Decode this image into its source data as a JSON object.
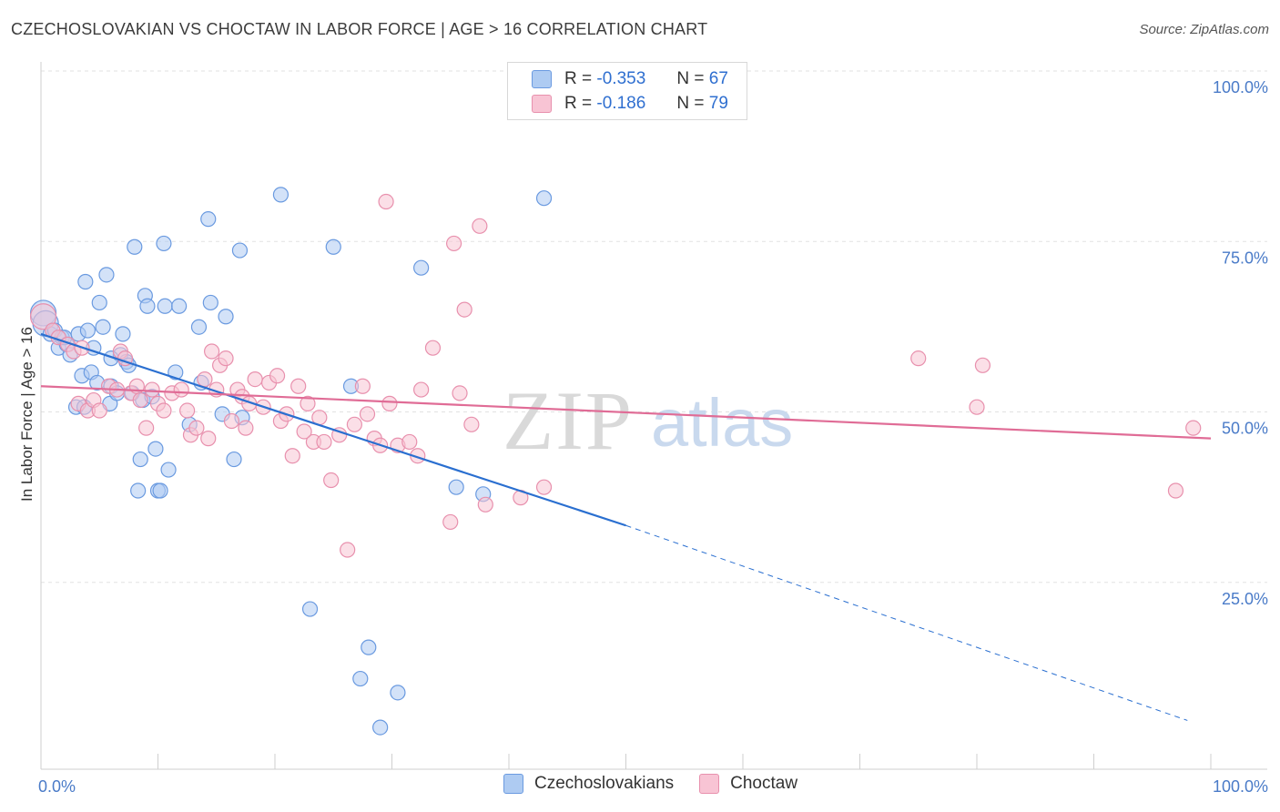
{
  "title": "CZECHOSLOVAKIAN VS CHOCTAW IN LABOR FORCE | AGE > 16 CORRELATION CHART",
  "source": "Source: ZipAtlas.com",
  "watermark": {
    "part1": "ZIP",
    "part2": "atlas"
  },
  "legend_top": [
    {
      "r_label": "R =",
      "r_value": "-0.353",
      "n_label": "N =",
      "n_value": "67",
      "color": "#aecbf2",
      "stroke": "#6a9ae0"
    },
    {
      "r_label": "R =",
      "r_value": "-0.186",
      "n_label": "N =",
      "n_value": "79",
      "color": "#f8c4d4",
      "stroke": "#e890ad"
    }
  ],
  "legend_bottom": [
    {
      "label": "Czechoslovakians",
      "color": "#aecbf2",
      "stroke": "#6a9ae0"
    },
    {
      "label": "Choctaw",
      "color": "#f8c4d4",
      "stroke": "#e890ad"
    }
  ],
  "chart_data": {
    "type": "scatter",
    "title": "CZECHOSLOVAKIAN VS CHOCTAW IN LABOR FORCE | AGE > 16 CORRELATION CHART",
    "xlabel": "",
    "ylabel": "In Labor Force | Age > 16",
    "xlim": [
      0,
      100
    ],
    "ylim": [
      0,
      100
    ],
    "x_tick_labels": [
      "0.0%",
      "100.0%"
    ],
    "y_tick_labels": [
      "25.0%",
      "50.0%",
      "75.0%",
      "100.0%"
    ],
    "y_ticks": [
      25,
      50,
      75,
      100
    ],
    "grid": true,
    "series": [
      {
        "name": "Czechoslovakians",
        "color": "#6a9ae0",
        "fill": "#aecbf2",
        "trend": {
          "x0": 0,
          "y0": 62.5,
          "x1": 50,
          "y1": 35.0,
          "dash_to_x": 98,
          "dash_to_y": 7.0,
          "color": "#2a6fd0"
        },
        "points": [
          [
            0.2,
            65.5
          ],
          [
            0.4,
            64.0
          ],
          [
            0.8,
            62.5
          ],
          [
            1.2,
            63.0
          ],
          [
            1.5,
            60.5
          ],
          [
            1.8,
            62.0
          ],
          [
            2.2,
            61.0
          ],
          [
            2.5,
            59.5
          ],
          [
            3.0,
            52.0
          ],
          [
            3.2,
            62.5
          ],
          [
            3.5,
            56.5
          ],
          [
            3.8,
            70.0
          ],
          [
            4.0,
            63.0
          ],
          [
            4.3,
            57.0
          ],
          [
            4.5,
            60.5
          ],
          [
            4.8,
            55.5
          ],
          [
            5.0,
            67.0
          ],
          [
            5.3,
            63.5
          ],
          [
            5.6,
            71.0
          ],
          [
            5.9,
            52.5
          ],
          [
            6.0,
            55.0
          ],
          [
            6.5,
            54.0
          ],
          [
            6.8,
            59.5
          ],
          [
            7.0,
            62.5
          ],
          [
            7.3,
            58.5
          ],
          [
            7.5,
            58.0
          ],
          [
            7.8,
            54.0
          ],
          [
            8.0,
            75.0
          ],
          [
            8.3,
            40.0
          ],
          [
            8.5,
            44.5
          ],
          [
            8.7,
            53.0
          ],
          [
            8.9,
            68.0
          ],
          [
            9.1,
            66.5
          ],
          [
            9.5,
            53.5
          ],
          [
            9.8,
            46.0
          ],
          [
            10.0,
            40.0
          ],
          [
            10.2,
            40.0
          ],
          [
            10.5,
            75.5
          ],
          [
            10.6,
            66.5
          ],
          [
            10.9,
            43.0
          ],
          [
            11.5,
            57.0
          ],
          [
            11.8,
            66.5
          ],
          [
            12.7,
            49.5
          ],
          [
            13.5,
            63.5
          ],
          [
            13.7,
            55.5
          ],
          [
            14.3,
            79.0
          ],
          [
            14.5,
            67.0
          ],
          [
            15.5,
            51.0
          ],
          [
            15.8,
            65.0
          ],
          [
            16.5,
            44.5
          ],
          [
            17.0,
            74.5
          ],
          [
            17.2,
            50.5
          ],
          [
            20.5,
            82.5
          ],
          [
            23.0,
            23.0
          ],
          [
            25.0,
            75.0
          ],
          [
            26.5,
            55.0
          ],
          [
            28.0,
            17.5
          ],
          [
            27.3,
            13.0
          ],
          [
            29.0,
            6.0
          ],
          [
            30.5,
            11.0
          ],
          [
            32.5,
            72.0
          ],
          [
            35.5,
            40.5
          ],
          [
            37.8,
            39.5
          ],
          [
            43.0,
            82.0
          ],
          [
            6.0,
            59.0
          ],
          [
            3.7,
            52.0
          ],
          [
            2.0,
            62.0
          ]
        ]
      },
      {
        "name": "Choctaw",
        "color": "#e890ad",
        "fill": "#f8c4d4",
        "trend": {
          "x0": 0,
          "y0": 55.0,
          "x1": 100,
          "y1": 47.5,
          "color": "#e06c96"
        },
        "points": [
          [
            0.2,
            65.0
          ],
          [
            1.0,
            63.0
          ],
          [
            1.5,
            62.0
          ],
          [
            2.3,
            61.0
          ],
          [
            2.8,
            60.0
          ],
          [
            3.2,
            52.5
          ],
          [
            4.0,
            51.5
          ],
          [
            4.5,
            53.0
          ],
          [
            5.0,
            51.5
          ],
          [
            5.8,
            55.0
          ],
          [
            6.5,
            54.5
          ],
          [
            6.8,
            60.0
          ],
          [
            7.2,
            59.0
          ],
          [
            7.7,
            54.0
          ],
          [
            8.2,
            55.0
          ],
          [
            8.5,
            53.0
          ],
          [
            9.0,
            49.0
          ],
          [
            9.5,
            54.5
          ],
          [
            10.0,
            52.5
          ],
          [
            10.5,
            51.5
          ],
          [
            11.2,
            54.0
          ],
          [
            12.0,
            54.5
          ],
          [
            12.5,
            51.5
          ],
          [
            12.8,
            48.0
          ],
          [
            13.3,
            49.0
          ],
          [
            14.0,
            56.0
          ],
          [
            14.3,
            47.5
          ],
          [
            14.6,
            60.0
          ],
          [
            15.0,
            54.5
          ],
          [
            15.3,
            58.0
          ],
          [
            15.8,
            59.0
          ],
          [
            16.3,
            50.0
          ],
          [
            16.8,
            54.5
          ],
          [
            17.2,
            53.5
          ],
          [
            17.5,
            49.0
          ],
          [
            17.8,
            52.5
          ],
          [
            18.3,
            56.0
          ],
          [
            19.0,
            52.0
          ],
          [
            19.5,
            55.5
          ],
          [
            20.2,
            56.5
          ],
          [
            20.5,
            50.0
          ],
          [
            21.0,
            51.0
          ],
          [
            21.5,
            45.0
          ],
          [
            22.0,
            55.0
          ],
          [
            22.8,
            52.5
          ],
          [
            23.3,
            47.0
          ],
          [
            23.8,
            50.5
          ],
          [
            24.2,
            47.0
          ],
          [
            24.8,
            41.5
          ],
          [
            25.5,
            48.0
          ],
          [
            26.2,
            31.5
          ],
          [
            26.8,
            49.5
          ],
          [
            27.5,
            55.0
          ],
          [
            27.9,
            51.0
          ],
          [
            28.5,
            47.5
          ],
          [
            29.0,
            46.5
          ],
          [
            29.5,
            81.5
          ],
          [
            29.8,
            52.5
          ],
          [
            30.5,
            46.5
          ],
          [
            31.5,
            47.0
          ],
          [
            32.2,
            45.0
          ],
          [
            32.5,
            54.5
          ],
          [
            33.5,
            60.5
          ],
          [
            35.0,
            35.5
          ],
          [
            35.3,
            75.5
          ],
          [
            35.8,
            54.0
          ],
          [
            36.2,
            66.0
          ],
          [
            36.8,
            49.5
          ],
          [
            37.5,
            78.0
          ],
          [
            38.0,
            38.0
          ],
          [
            41.0,
            39.0
          ],
          [
            43.0,
            40.5
          ],
          [
            75.0,
            59.0
          ],
          [
            80.0,
            52.0
          ],
          [
            80.5,
            58.0
          ],
          [
            97.0,
            40.0
          ],
          [
            98.5,
            49.0
          ],
          [
            3.5,
            60.5
          ],
          [
            22.5,
            48.5
          ]
        ]
      }
    ]
  }
}
